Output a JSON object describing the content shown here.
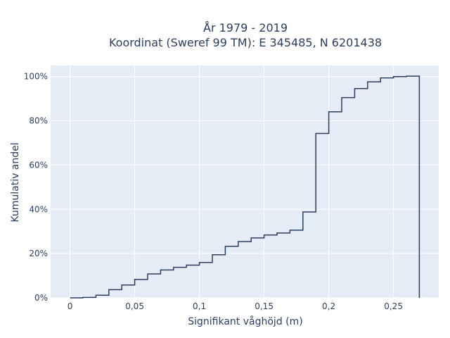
{
  "chart_data": {
    "type": "line",
    "line_shape": "step-after",
    "title_lines": [
      "År 1979 - 2019",
      "Koordinat (Sweref 99 TM): E 345485, N 6201438"
    ],
    "xlabel": "Signifikant våghöjd (m)",
    "ylabel": "Kumulativ andel",
    "xlim": [
      -0.015,
      0.285
    ],
    "ylim": [
      0,
      1.05
    ],
    "x_ticks": [
      {
        "value": 0,
        "label": "0"
      },
      {
        "value": 0.05,
        "label": "0,05"
      },
      {
        "value": 0.1,
        "label": "0,1"
      },
      {
        "value": 0.15,
        "label": "0,15"
      },
      {
        "value": 0.2,
        "label": "0,2"
      },
      {
        "value": 0.25,
        "label": "0,25"
      }
    ],
    "y_ticks": [
      {
        "value": 0,
        "label": "0%"
      },
      {
        "value": 0.2,
        "label": "20%"
      },
      {
        "value": 0.4,
        "label": "40%"
      },
      {
        "value": 0.6,
        "label": "60%"
      },
      {
        "value": 0.8,
        "label": "80%"
      },
      {
        "value": 1.0,
        "label": "100%"
      }
    ],
    "grid": true,
    "colors": {
      "plot_bg": "#e5ecf6",
      "grid": "#ffffff",
      "line": "#2a3f5f",
      "text": "#2a3f5f"
    },
    "series": [
      {
        "x": [
          0,
          0.01,
          0.02,
          0.03,
          0.04,
          0.05,
          0.06,
          0.07,
          0.08,
          0.09,
          0.1,
          0.11,
          0.12,
          0.13,
          0.14,
          0.15,
          0.16,
          0.17,
          0.18,
          0.19,
          0.2,
          0.21,
          0.22,
          0.23,
          0.24,
          0.25,
          0.26,
          0.27,
          0.27
        ],
        "y": [
          0,
          0.002,
          0.012,
          0.037,
          0.058,
          0.083,
          0.108,
          0.126,
          0.138,
          0.148,
          0.16,
          0.195,
          0.233,
          0.254,
          0.271,
          0.284,
          0.293,
          0.306,
          0.388,
          0.743,
          0.841,
          0.905,
          0.946,
          0.976,
          0.994,
          1.0,
          1.002,
          1.002,
          0
        ]
      }
    ]
  }
}
